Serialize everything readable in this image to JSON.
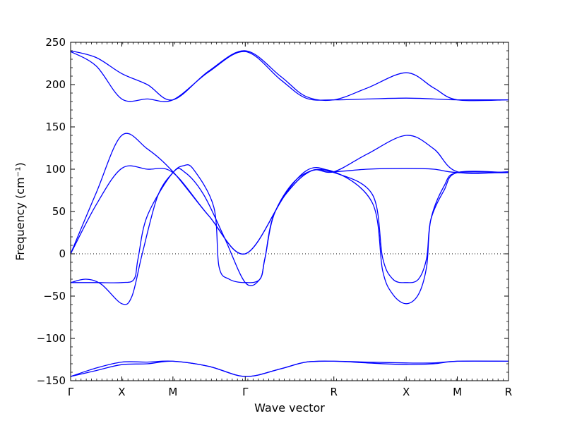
{
  "chart_data": {
    "type": "line",
    "title": "",
    "xlabel": "Wave vector",
    "ylabel": "Frequency (cm⁻¹)",
    "ylim": [
      -150,
      250
    ],
    "y_ticks": [
      -150,
      -100,
      -50,
      0,
      50,
      100,
      150,
      200,
      250
    ],
    "y_tick_labels": [
      "−150",
      "−100",
      "−50",
      "0",
      "50",
      "100",
      "150",
      "200",
      "250"
    ],
    "x_ticks": [
      {
        "label": "Γ",
        "pos": 0
      },
      {
        "label": "X",
        "pos": 0.5
      },
      {
        "label": "M",
        "pos": 1.0
      },
      {
        "label": "Γ",
        "pos": 1.707
      },
      {
        "label": "R",
        "pos": 2.573
      },
      {
        "label": "X",
        "pos": 3.28
      },
      {
        "label": "M",
        "pos": 3.78
      },
      {
        "label": "R",
        "pos": 4.28
      }
    ],
    "xlim": [
      0,
      4.28
    ],
    "zero_line": true,
    "line_color": "#0000ff",
    "series": [
      {
        "values": [
          [
            0,
            240
          ],
          [
            0.25,
            232
          ],
          [
            0.5,
            213
          ],
          [
            0.75,
            200
          ],
          [
            1.0,
            182
          ],
          [
            1.35,
            216
          ],
          [
            1.707,
            240
          ],
          [
            2.05,
            210
          ],
          [
            2.3,
            186
          ],
          [
            2.573,
            182
          ],
          [
            2.9,
            196
          ],
          [
            3.28,
            214
          ],
          [
            3.55,
            196
          ],
          [
            3.78,
            182
          ],
          [
            4.28,
            182
          ]
        ]
      },
      {
        "values": [
          [
            0,
            239
          ],
          [
            0.25,
            222
          ],
          [
            0.5,
            183
          ],
          [
            0.75,
            183
          ],
          [
            1.0,
            182
          ],
          [
            1.35,
            215
          ],
          [
            1.707,
            239
          ],
          [
            2.05,
            206
          ],
          [
            2.3,
            184
          ],
          [
            2.573,
            182
          ],
          [
            2.9,
            183
          ],
          [
            3.28,
            184
          ],
          [
            3.55,
            183
          ],
          [
            3.78,
            182
          ],
          [
            4.28,
            182
          ]
        ]
      },
      {
        "values": [
          [
            0,
            0
          ],
          [
            0.25,
            72
          ],
          [
            0.5,
            140
          ],
          [
            0.75,
            124
          ],
          [
            1.0,
            97
          ],
          [
            1.35,
            45
          ],
          [
            1.707,
            0
          ],
          [
            2.1,
            70
          ],
          [
            2.35,
            98
          ],
          [
            2.573,
            97
          ],
          [
            2.9,
            118
          ],
          [
            3.28,
            140
          ],
          [
            3.55,
            124
          ],
          [
            3.78,
            97
          ],
          [
            4.28,
            97
          ]
        ]
      },
      {
        "values": [
          [
            0,
            0
          ],
          [
            0.25,
            58
          ],
          [
            0.5,
            101
          ],
          [
            0.75,
            100
          ],
          [
            1.0,
            96
          ],
          [
            1.35,
            45
          ],
          [
            1.707,
            0
          ],
          [
            2.1,
            70
          ],
          [
            2.35,
            98
          ],
          [
            2.573,
            97
          ],
          [
            2.9,
            100
          ],
          [
            3.28,
            101
          ],
          [
            3.55,
            100
          ],
          [
            3.78,
            96
          ],
          [
            4.28,
            96
          ]
        ]
      },
      {
        "values": [
          [
            0,
            -34
          ],
          [
            0.15,
            -30
          ],
          [
            0.3,
            -36
          ],
          [
            0.5,
            -59
          ],
          [
            0.6,
            -50
          ],
          [
            0.7,
            0
          ],
          [
            0.85,
            68
          ],
          [
            1.0,
            96
          ],
          [
            1.1,
            104
          ],
          [
            1.2,
            100
          ],
          [
            1.4,
            55
          ],
          [
            1.45,
            -15
          ],
          [
            1.55,
            -30
          ],
          [
            1.707,
            -34
          ],
          [
            1.85,
            -30
          ],
          [
            1.9,
            -5
          ],
          [
            2.0,
            50
          ],
          [
            2.25,
            92
          ],
          [
            2.573,
            97
          ],
          [
            2.95,
            60
          ],
          [
            3.05,
            -20
          ],
          [
            3.15,
            -48
          ],
          [
            3.28,
            -59
          ],
          [
            3.4,
            -48
          ],
          [
            3.48,
            -15
          ],
          [
            3.52,
            40
          ],
          [
            3.65,
            80
          ],
          [
            3.78,
            96
          ],
          [
            4.28,
            96
          ]
        ]
      },
      {
        "values": [
          [
            0,
            -34
          ],
          [
            0.25,
            -34
          ],
          [
            0.5,
            -34
          ],
          [
            0.62,
            -30
          ],
          [
            0.66,
            -5
          ],
          [
            0.75,
            45
          ],
          [
            1.0,
            96
          ],
          [
            1.12,
            96
          ],
          [
            1.3,
            70
          ],
          [
            1.5,
            20
          ],
          [
            1.707,
            -34
          ],
          [
            1.85,
            -30
          ],
          [
            1.9,
            -5
          ],
          [
            2.0,
            50
          ],
          [
            2.3,
            98
          ],
          [
            2.573,
            96
          ],
          [
            2.95,
            70
          ],
          [
            3.05,
            -5
          ],
          [
            3.15,
            -30
          ],
          [
            3.28,
            -34
          ],
          [
            3.4,
            -30
          ],
          [
            3.48,
            -5
          ],
          [
            3.52,
            40
          ],
          [
            3.65,
            75
          ],
          [
            3.78,
            96
          ],
          [
            4.28,
            96
          ]
        ]
      },
      {
        "values": [
          [
            0,
            -145
          ],
          [
            0.25,
            -138
          ],
          [
            0.5,
            -131
          ],
          [
            0.75,
            -130
          ],
          [
            1.0,
            -127
          ],
          [
            1.35,
            -133
          ],
          [
            1.707,
            -145
          ],
          [
            2.05,
            -136
          ],
          [
            2.3,
            -128
          ],
          [
            2.573,
            -127
          ],
          [
            2.9,
            -129
          ],
          [
            3.28,
            -131
          ],
          [
            3.55,
            -130
          ],
          [
            3.78,
            -127
          ],
          [
            4.28,
            -127
          ]
        ]
      },
      {
        "values": [
          [
            0,
            -145
          ],
          [
            0.25,
            -135
          ],
          [
            0.5,
            -128
          ],
          [
            0.75,
            -128
          ],
          [
            1.0,
            -127
          ],
          [
            1.35,
            -133
          ],
          [
            1.707,
            -145
          ],
          [
            2.05,
            -136
          ],
          [
            2.3,
            -128
          ],
          [
            2.573,
            -127
          ],
          [
            2.9,
            -128
          ],
          [
            3.28,
            -129
          ],
          [
            3.55,
            -129
          ],
          [
            3.78,
            -127
          ],
          [
            4.28,
            -127
          ]
        ]
      }
    ]
  }
}
